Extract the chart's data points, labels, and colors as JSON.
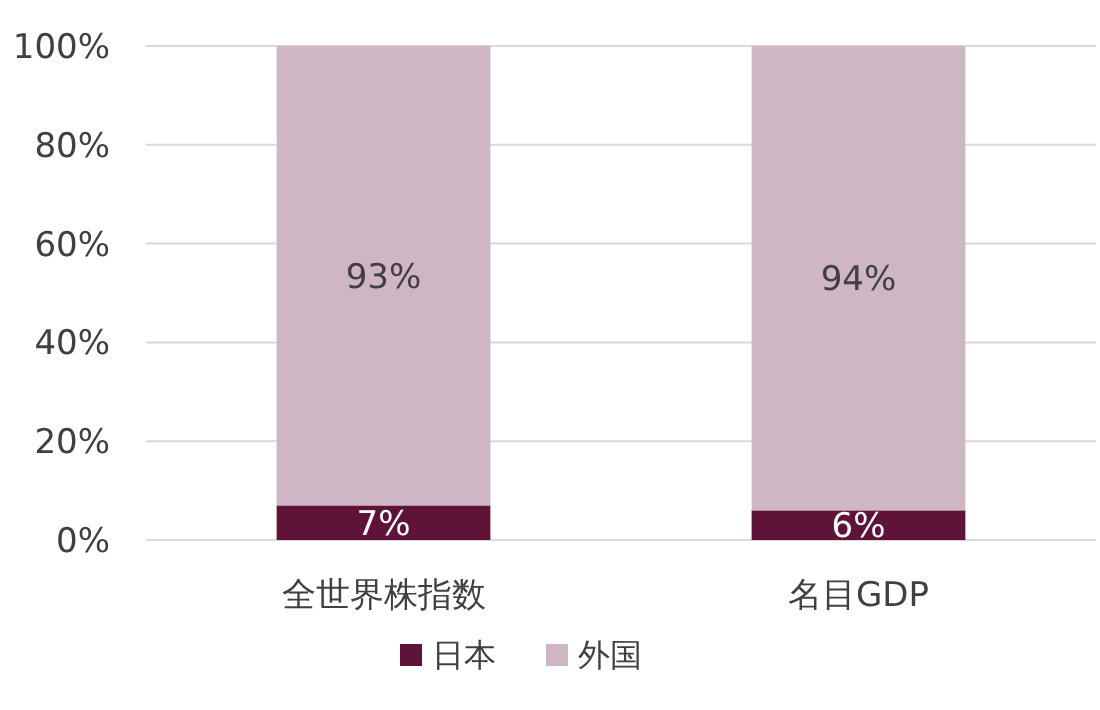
{
  "chart_data": {
    "type": "bar",
    "stacked": true,
    "categories": [
      "全世界株指数",
      "名目GDP"
    ],
    "series": [
      {
        "name": "日本",
        "color": "#5f1339",
        "values": [
          7,
          6
        ],
        "value_labels": [
          "7%",
          "6%"
        ]
      },
      {
        "name": "外国",
        "color": "#cfb6c4",
        "values": [
          93,
          94
        ],
        "value_labels": [
          "93%",
          "94%"
        ]
      }
    ],
    "ylim": [
      0,
      100
    ],
    "yticks": [
      {
        "value": 0,
        "label": "0%"
      },
      {
        "value": 20,
        "label": "20%"
      },
      {
        "value": 40,
        "label": "40%"
      },
      {
        "value": 60,
        "label": "60%"
      },
      {
        "value": 80,
        "label": "80%"
      },
      {
        "value": 100,
        "label": "100%"
      }
    ],
    "grid": "y",
    "legend": "bottom"
  }
}
